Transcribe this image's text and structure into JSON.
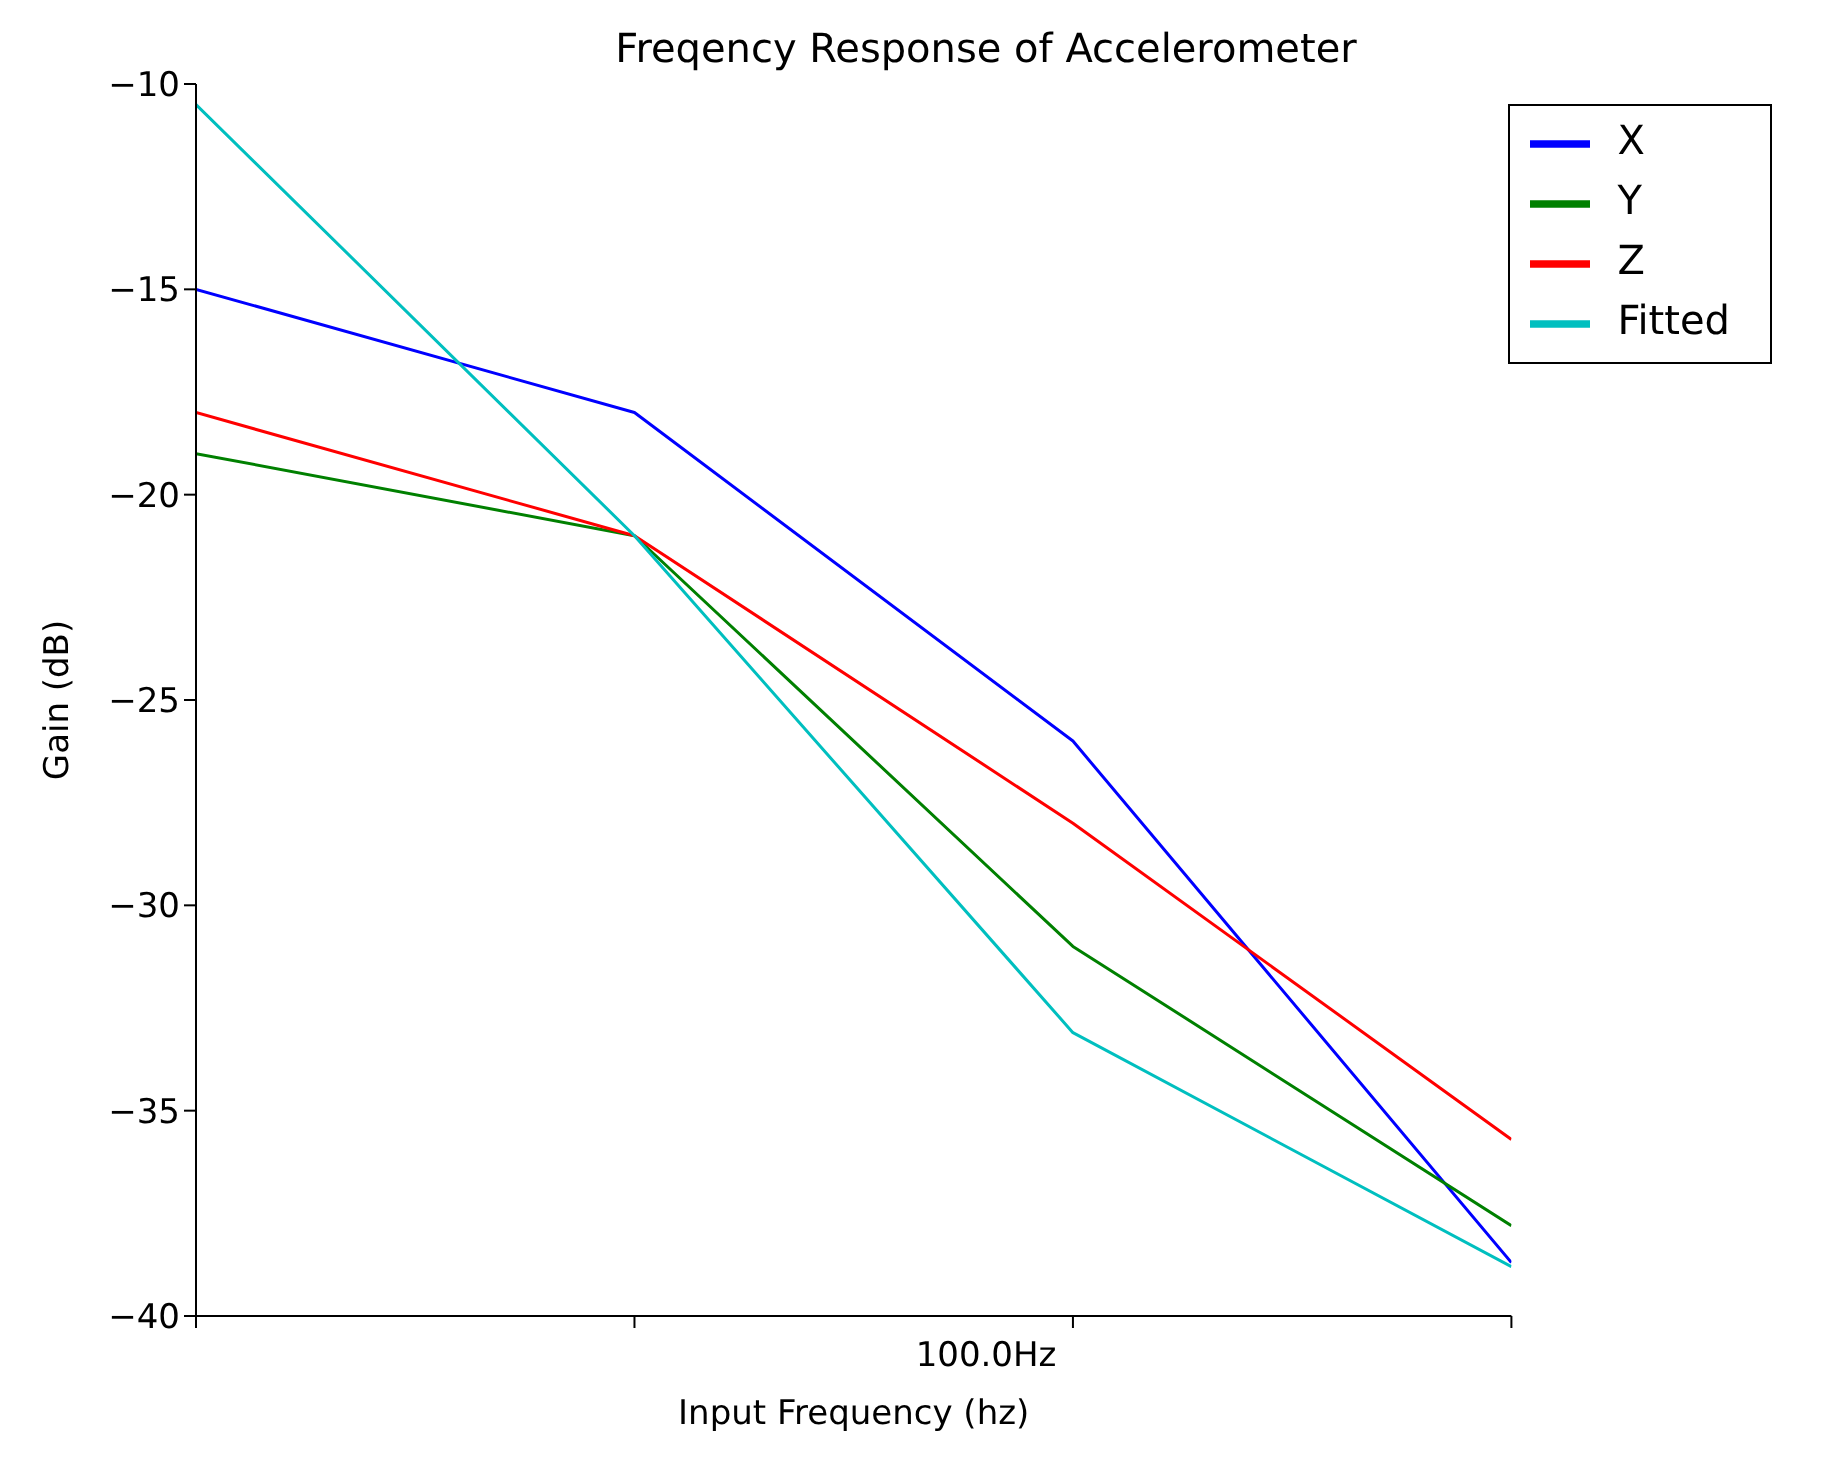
{
  "chart_data": {
    "type": "line",
    "title": "Freqency Response of Accelerometer",
    "xlabel": "Input Frequency (hz)",
    "ylabel": "Gain (dB)",
    "categories": [
      null,
      null,
      null,
      null
    ],
    "series": [
      {
        "name": "X",
        "color": "#0000ff",
        "values": [
          -15,
          -18,
          -26,
          -38.7
        ]
      },
      {
        "name": "Y",
        "color": "#008000",
        "values": [
          -19,
          -21,
          -31,
          -37.8
        ]
      },
      {
        "name": "Z",
        "color": "#ff0000",
        "values": [
          -18,
          -21,
          -28,
          -35.7
        ]
      },
      {
        "name": "Fitted",
        "color": "#00bfbf",
        "values": [
          -10.5,
          -21,
          -33.1,
          -38.8
        ]
      }
    ],
    "annotations": [
      "100.0Hz"
    ],
    "ylim": [
      -40,
      -10
    ],
    "yticks": [
      {
        "value": -40,
        "label": "−40"
      },
      {
        "value": -35,
        "label": "−35"
      },
      {
        "value": -30,
        "label": "−30"
      },
      {
        "value": -25,
        "label": "−25"
      },
      {
        "value": -20,
        "label": "−20"
      },
      {
        "value": -15,
        "label": "−15"
      },
      {
        "value": -10,
        "label": "−10"
      }
    ],
    "grid": false,
    "legend": "top right",
    "marker": "none",
    "line_style": "solid"
  }
}
